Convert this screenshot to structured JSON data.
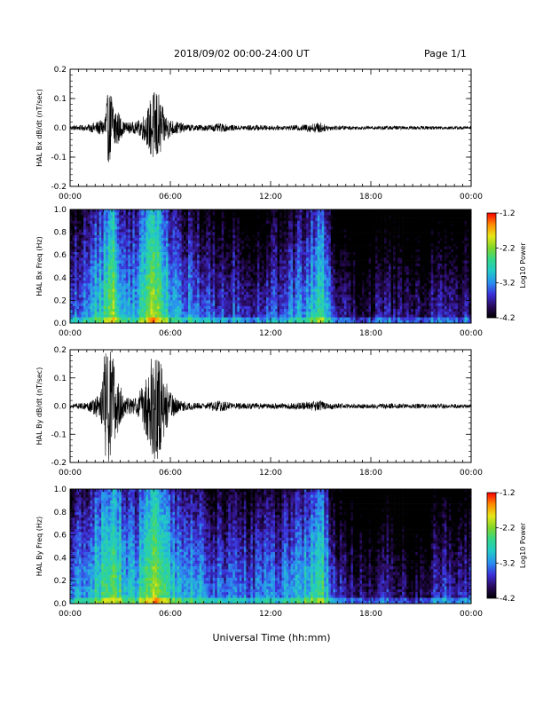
{
  "header": {
    "title": "2018/09/02  00:00-24:00 UT",
    "page": "Page 1/1"
  },
  "x_axis_title": "Universal Time (hh:mm)",
  "colors": {
    "trace": "#000000",
    "colorbar": [
      "#000000",
      "#2a0a5e",
      "#3b2fd9",
      "#2a8ef0",
      "#22c9c9",
      "#33d68a",
      "#7fd62a",
      "#e6e619",
      "#ff8c00",
      "#ff0000"
    ]
  },
  "chart_data": [
    {
      "type": "line",
      "ylabel": "HAL Bx dB/dt (nT/sec)",
      "ylim": [
        -0.2,
        0.2
      ],
      "y_ticks": [
        "0.2",
        "0.1",
        "0.0",
        "-0.1",
        "-0.2"
      ],
      "x_ticks": [
        "00:00",
        "06:00",
        "12:00",
        "18:00",
        "00:00"
      ],
      "xlim_hours": [
        0,
        24
      ],
      "series": [
        {
          "x_hours": [
            0,
            1,
            2.0,
            2.2,
            2.5,
            2.8,
            3.2,
            4.0,
            4.6,
            4.9,
            5.2,
            5.6,
            6.0,
            6.5,
            7,
            8,
            9,
            10,
            11,
            12,
            13,
            14,
            15.0,
            15.3,
            16,
            17,
            18,
            19,
            20,
            21,
            22,
            23,
            24
          ],
          "envelope": [
            0.008,
            0.01,
            0.03,
            0.11,
            0.13,
            0.07,
            0.02,
            0.02,
            0.06,
            0.12,
            0.14,
            0.06,
            0.03,
            0.02,
            0.012,
            0.01,
            0.015,
            0.008,
            0.01,
            0.008,
            0.007,
            0.012,
            0.02,
            0.01,
            0.008,
            0.006,
            0.006,
            0.007,
            0.006,
            0.006,
            0.006,
            0.006,
            0.005
          ]
        }
      ]
    },
    {
      "type": "heatmap",
      "ylabel": "HAL Bx Freq (Hz)",
      "ylim": [
        0.0,
        1.0
      ],
      "y_ticks": [
        "1.0",
        "0.8",
        "0.6",
        "0.4",
        "0.2",
        "0.0"
      ],
      "x_ticks": [
        "00:00",
        "06:00",
        "12:00",
        "18:00",
        "00:00"
      ],
      "colorbar_label": "Log10 Power",
      "colorbar_ticks": [
        "-1.2",
        "-2.2",
        "-3.2",
        "-4.2"
      ],
      "zlim": [
        -4.2,
        -1.2
      ],
      "activity_hours": [
        0,
        1,
        2.0,
        2.6,
        3.2,
        4.0,
        4.5,
        5.2,
        6.0,
        7,
        8,
        9,
        10,
        11,
        12,
        13,
        14,
        15.0,
        15.6,
        16,
        17,
        18,
        19,
        20,
        21,
        22,
        23,
        24
      ],
      "activity_level": [
        -3.4,
        -3.1,
        -2.6,
        -2.1,
        -2.9,
        -3.0,
        -2.4,
        -2.0,
        -2.8,
        -3.1,
        -3.2,
        -3.5,
        -3.3,
        -3.5,
        -3.4,
        -3.3,
        -3.0,
        -2.5,
        -3.2,
        -3.7,
        -3.8,
        -3.8,
        -3.7,
        -3.8,
        -3.9,
        -3.5,
        -3.6,
        -3.7
      ]
    },
    {
      "type": "line",
      "ylabel": "HAL By dB/dt (nT/sec)",
      "ylim": [
        -0.2,
        0.2
      ],
      "y_ticks": [
        "0.2",
        "0.1",
        "0.0",
        "-0.1",
        "-0.2"
      ],
      "x_ticks": [
        "00:00",
        "06:00",
        "12:00",
        "18:00",
        "00:00"
      ],
      "xlim_hours": [
        0,
        24
      ],
      "series": [
        {
          "x_hours": [
            0,
            1,
            1.8,
            2.1,
            2.5,
            2.9,
            3.3,
            4.0,
            4.5,
            4.9,
            5.3,
            5.7,
            6.1,
            6.6,
            7,
            8,
            9,
            10,
            11,
            12,
            13,
            14,
            15.0,
            15.3,
            16,
            17,
            18,
            19,
            20,
            21,
            22,
            23,
            24
          ],
          "envelope": [
            0.008,
            0.012,
            0.05,
            0.2,
            0.2,
            0.09,
            0.03,
            0.03,
            0.1,
            0.18,
            0.2,
            0.1,
            0.04,
            0.02,
            0.015,
            0.01,
            0.02,
            0.01,
            0.012,
            0.01,
            0.01,
            0.015,
            0.02,
            0.012,
            0.01,
            0.008,
            0.008,
            0.01,
            0.008,
            0.008,
            0.008,
            0.008,
            0.006
          ]
        }
      ]
    },
    {
      "type": "heatmap",
      "ylabel": "HAL By Freq (Hz)",
      "ylim": [
        0.0,
        1.0
      ],
      "y_ticks": [
        "1.0",
        "0.8",
        "0.6",
        "0.4",
        "0.2",
        "0.0"
      ],
      "x_ticks": [
        "00:00",
        "06:00",
        "12:00",
        "18:00",
        "00:00"
      ],
      "colorbar_label": "Log10 Power",
      "colorbar_ticks": [
        "-1.2",
        "-2.2",
        "-3.2",
        "-4.2"
      ],
      "zlim": [
        -4.2,
        -1.2
      ],
      "activity_hours": [
        0,
        1,
        2.0,
        2.6,
        3.2,
        4.0,
        4.5,
        5.2,
        6.0,
        7,
        8,
        9,
        10,
        11,
        12,
        13,
        14,
        15.0,
        15.6,
        16,
        17,
        18,
        19,
        20,
        21,
        22,
        23,
        24
      ],
      "activity_level": [
        -3.3,
        -3.0,
        -2.5,
        -2.0,
        -2.8,
        -2.9,
        -2.3,
        -1.9,
        -2.7,
        -3.0,
        -3.1,
        -3.3,
        -3.2,
        -3.3,
        -3.2,
        -3.1,
        -2.9,
        -2.4,
        -3.1,
        -3.6,
        -3.7,
        -3.8,
        -3.7,
        -3.8,
        -3.9,
        -3.4,
        -3.5,
        -3.6
      ]
    }
  ]
}
